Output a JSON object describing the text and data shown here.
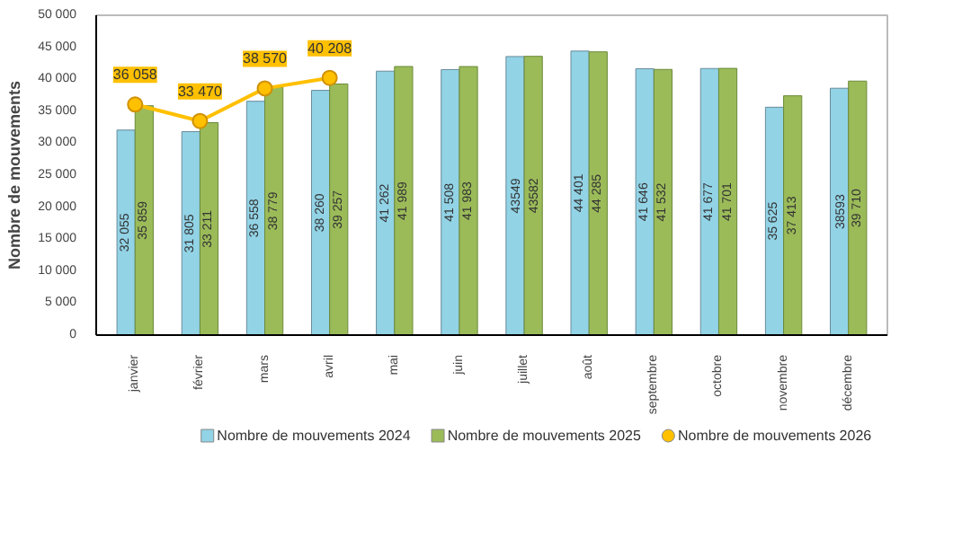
{
  "chart_data": {
    "type": "bar",
    "ylabel": "Nombre de mouvements",
    "categories": [
      "janvier",
      "février",
      "mars",
      "avril",
      "mai",
      "juin",
      "juillet",
      "août",
      "septembre",
      "octobre",
      "novembre",
      "décembre"
    ],
    "series": [
      {
        "name": "Nombre de mouvements 2024",
        "color": "#92d3e6",
        "values": [
          32055,
          31805,
          36558,
          38260,
          41262,
          41508,
          43549,
          44401,
          41646,
          41677,
          35625,
          38593
        ],
        "value_labels": [
          "32 055",
          "31 805",
          "36 558",
          "38 260",
          "41 262",
          "41 508",
          "43549",
          "44 401",
          "41 646",
          "41 677",
          "35 625",
          "38593"
        ]
      },
      {
        "name": "Nombre de mouvements 2025",
        "color": "#9bbb59",
        "values": [
          35859,
          33211,
          38779,
          39257,
          41989,
          41983,
          43582,
          44285,
          41532,
          41701,
          37413,
          39710
        ],
        "value_labels": [
          "35 859",
          "33 211",
          "38 779",
          "39 257",
          "41 989",
          "41 983",
          "43582",
          "44 285",
          "41 532",
          "41 701",
          "37 413",
          "39 710"
        ]
      },
      {
        "name": "Nombre de mouvements 2026",
        "type": "line",
        "color": "#ffc000",
        "marker": "circle",
        "values": [
          36058,
          33470,
          38570,
          40208,
          null,
          null,
          null,
          null,
          null,
          null,
          null,
          null
        ],
        "value_labels": [
          "36 058",
          "33 470",
          "38 570",
          "40 208",
          null,
          null,
          null,
          null,
          null,
          null,
          null,
          null
        ]
      }
    ],
    "ylim": [
      0,
      50000
    ],
    "yticks": [
      {
        "value": 0,
        "label": "0"
      },
      {
        "value": 5000,
        "label": "5 000"
      },
      {
        "value": 10000,
        "label": "10 000"
      },
      {
        "value": 15000,
        "label": "15 000"
      },
      {
        "value": 20000,
        "label": "20 000"
      },
      {
        "value": 25000,
        "label": "25 000"
      },
      {
        "value": 30000,
        "label": "30 000"
      },
      {
        "value": 35000,
        "label": "35 000"
      },
      {
        "value": 40000,
        "label": "40 000"
      },
      {
        "value": 45000,
        "label": "45 000"
      },
      {
        "value": 50000,
        "label": "50 000"
      }
    ],
    "grid": false,
    "legend": "bottom"
  }
}
